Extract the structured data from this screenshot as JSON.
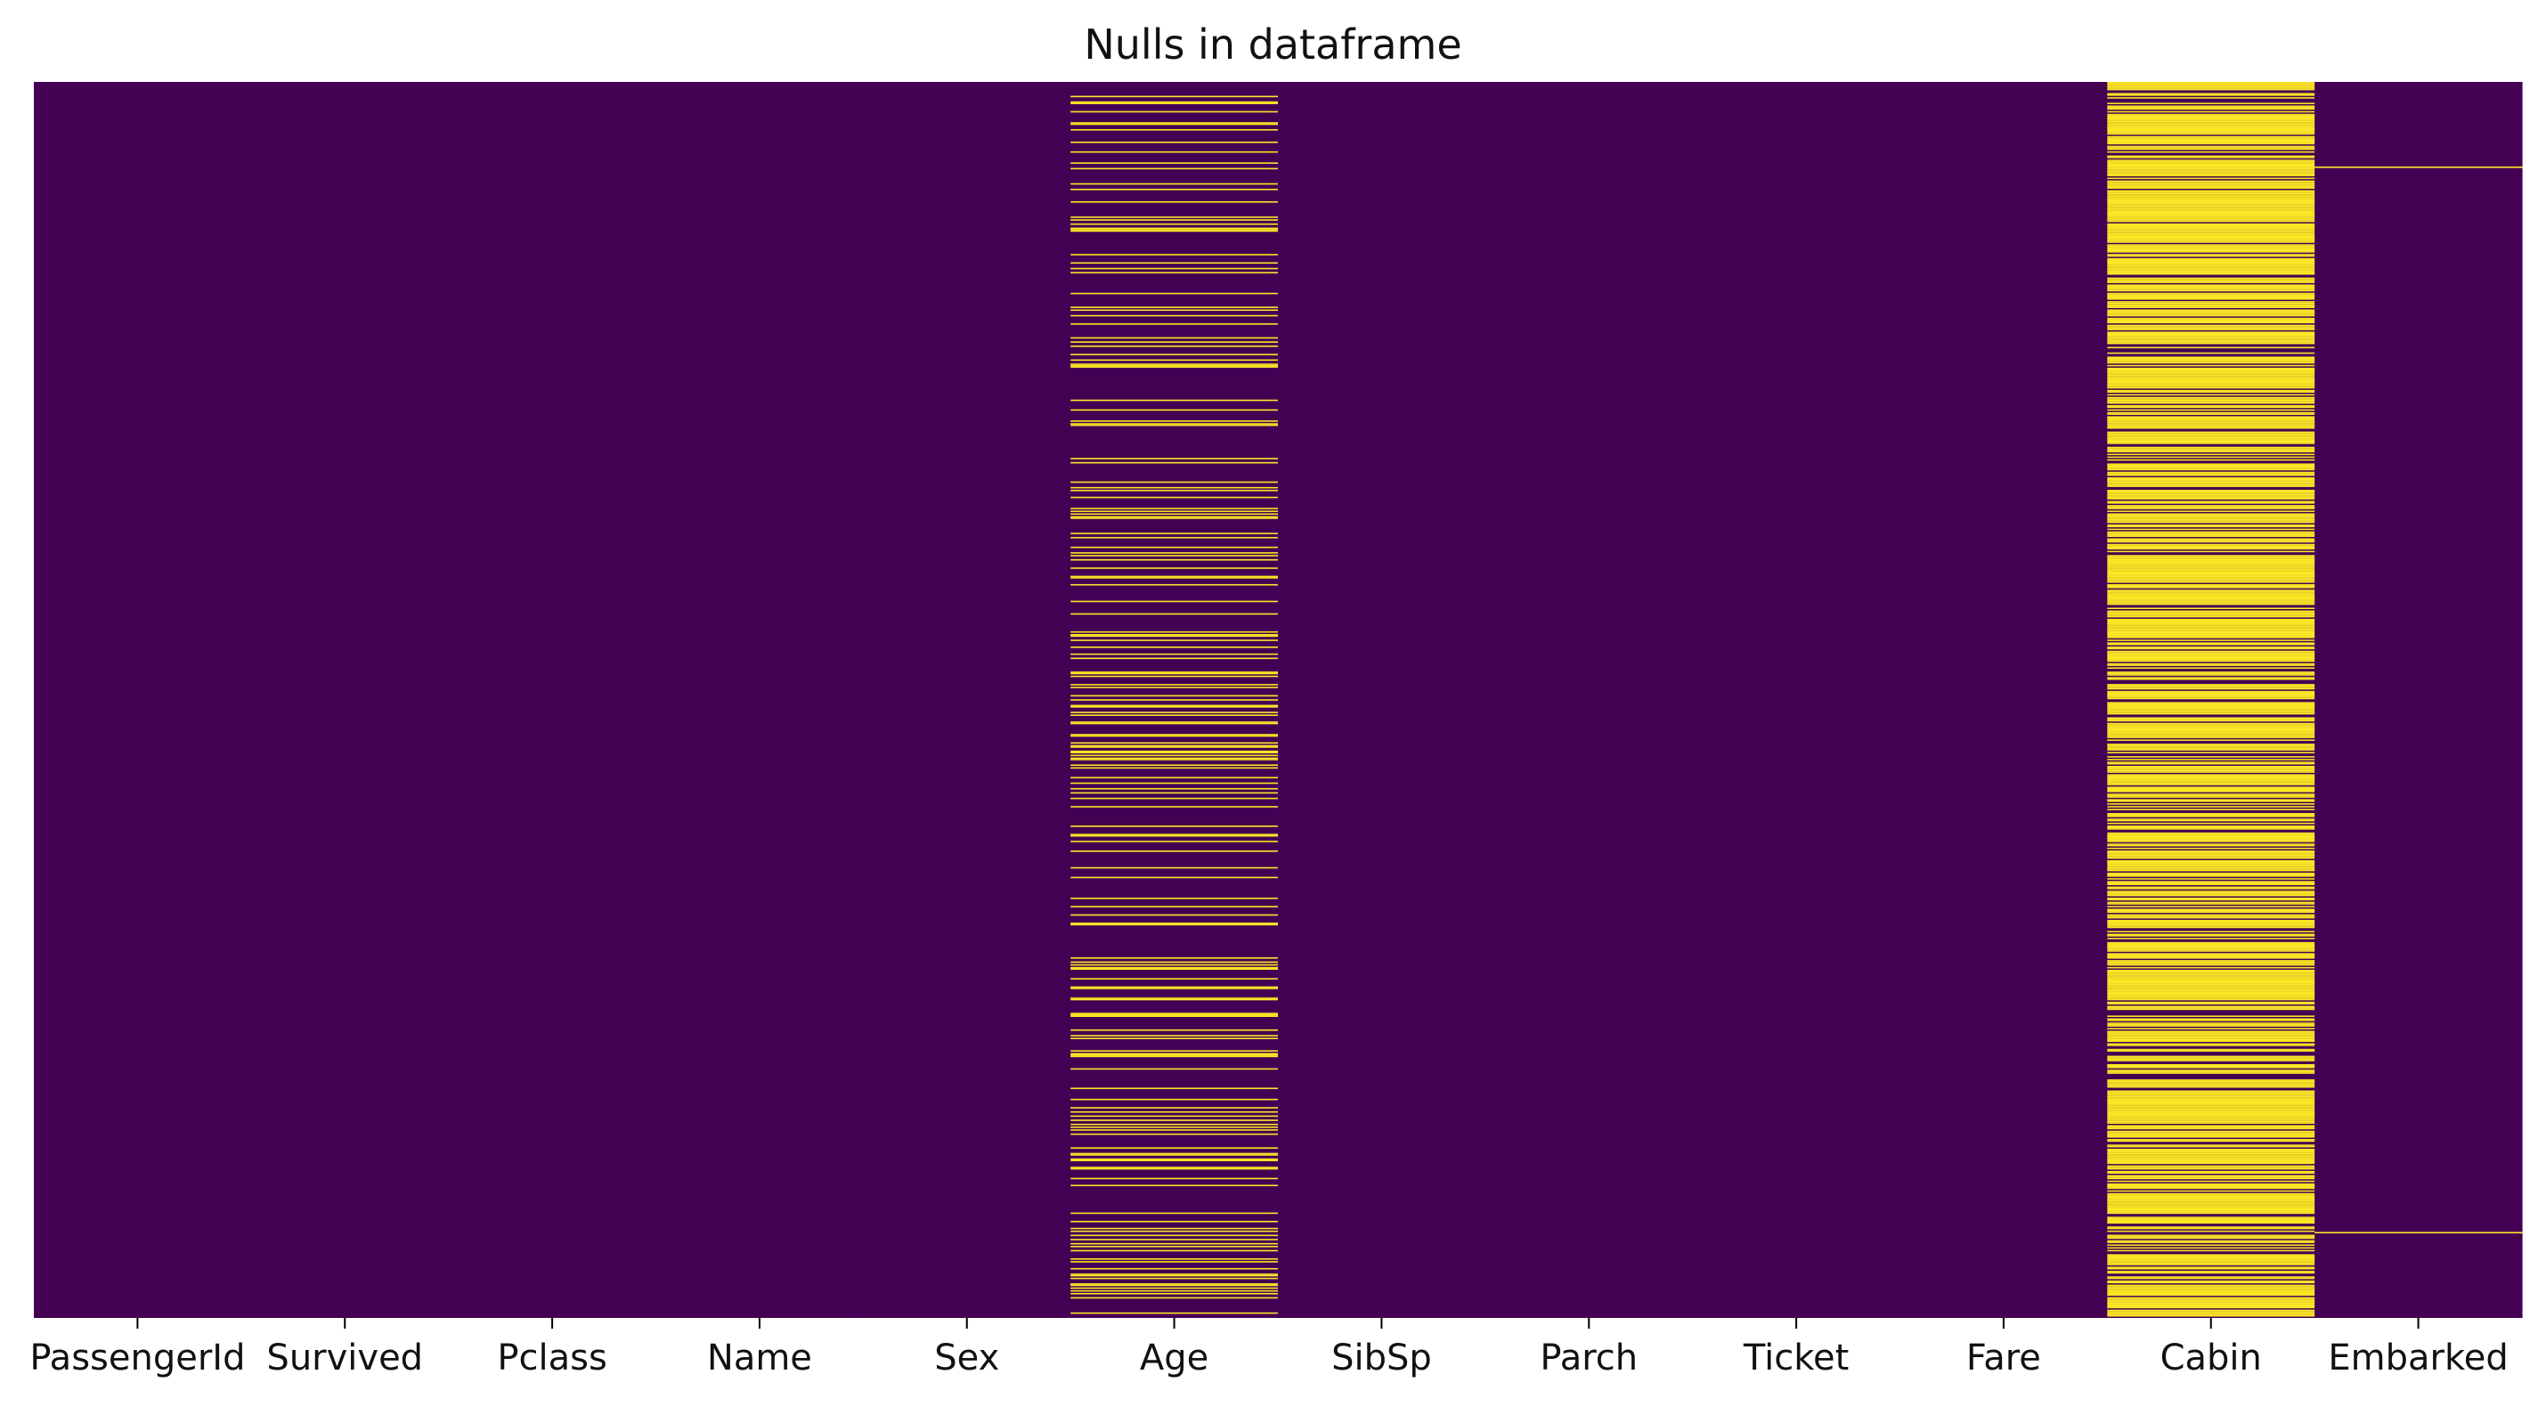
{
  "chart_data": {
    "type": "heatmap",
    "title": "Nulls in dataframe",
    "xlabel": "",
    "ylabel": "",
    "columns": [
      "PassengerId",
      "Survived",
      "Pclass",
      "Name",
      "Sex",
      "Age",
      "SibSp",
      "Parch",
      "Ticket",
      "Fare",
      "Cabin",
      "Embarked"
    ],
    "n_rows": 891,
    "colors": {
      "not_null": "#440154",
      "null": "#fde725"
    },
    "null_counts": {
      "PassengerId": 0,
      "Survived": 0,
      "Pclass": 0,
      "Name": 0,
      "Sex": 0,
      "Age": 177,
      "SibSp": 0,
      "Parch": 0,
      "Ticket": 0,
      "Fare": 0,
      "Cabin": 687,
      "Embarked": 2
    },
    "null_rows": {
      "Embarked": [
        61,
        829
      ]
    },
    "yticks": false,
    "grid": false,
    "colorbar": false
  }
}
